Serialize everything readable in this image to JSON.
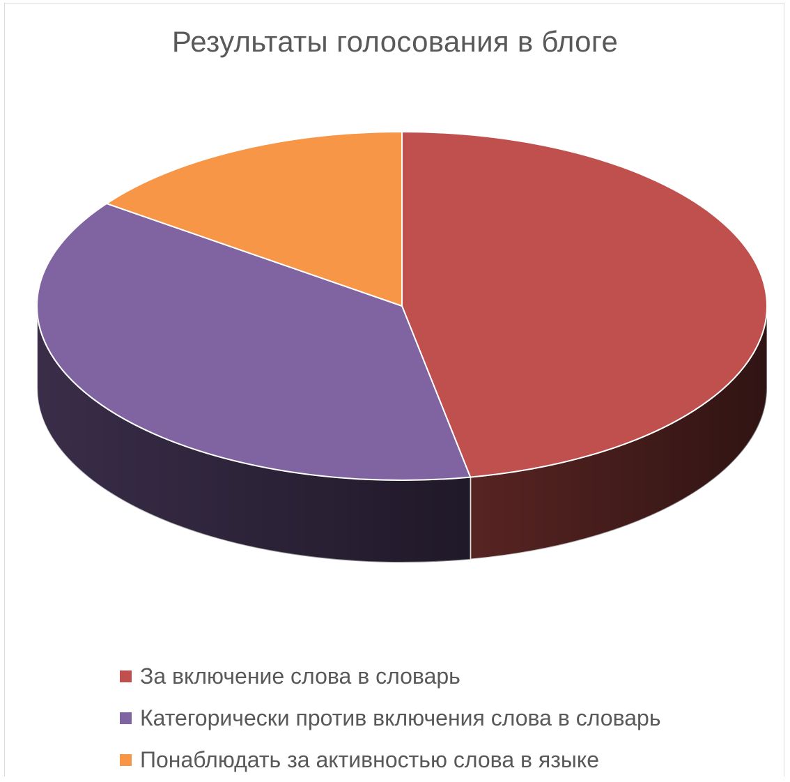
{
  "chart_data": {
    "type": "pie",
    "title": "Результаты голосования в блоге",
    "legend_position": "bottom",
    "style": "3d",
    "series": [
      {
        "name": "За включение слова в словарь",
        "value": 47,
        "color": "#c0504d"
      },
      {
        "name": "Категорически против включения слова в словарь",
        "value": 38,
        "color": "#8064a2"
      },
      {
        "name": "Понаблюдать за активностью слова в языке",
        "value": 15,
        "color": "#f79646"
      }
    ]
  }
}
